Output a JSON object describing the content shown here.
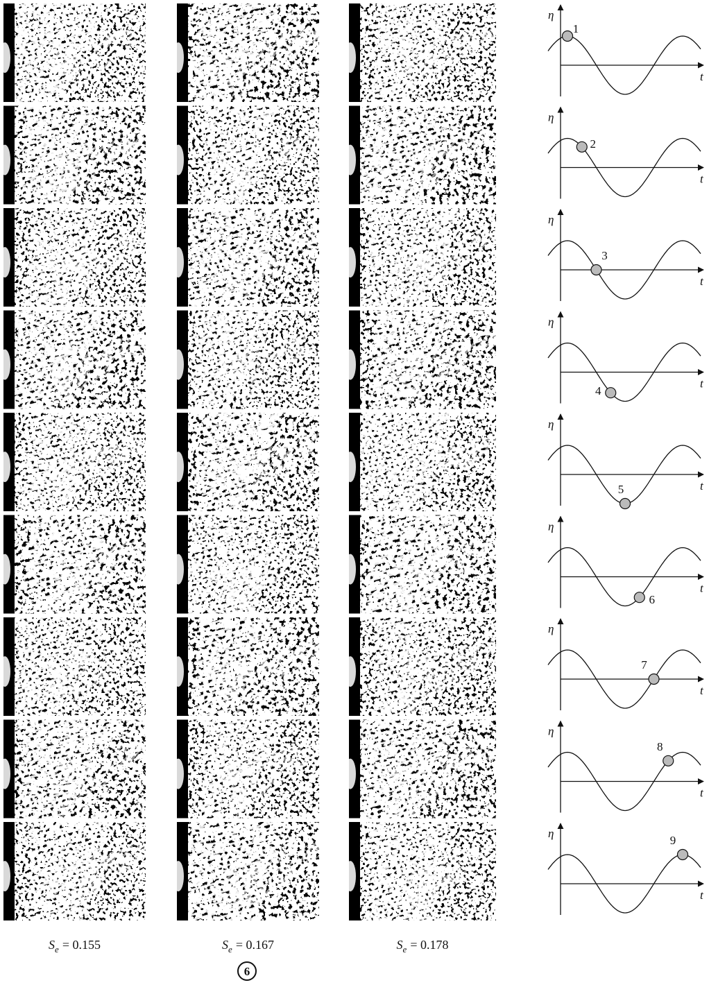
{
  "columns": [
    {
      "symbol": "S",
      "subscript": "e",
      "value": "= 0.155"
    },
    {
      "symbol": "S",
      "subscript": "e",
      "value": "= 0.167"
    },
    {
      "symbol": "S",
      "subscript": "e",
      "value": "= 0.178"
    }
  ],
  "diagrams": [
    {
      "y_label": "η",
      "x_label": "t",
      "point": "1"
    },
    {
      "y_label": "η",
      "x_label": "t",
      "point": "2"
    },
    {
      "y_label": "η",
      "x_label": "t",
      "point": "3"
    },
    {
      "y_label": "η",
      "x_label": "t",
      "point": "4"
    },
    {
      "y_label": "η",
      "x_label": "t",
      "point": "5"
    },
    {
      "y_label": "η",
      "x_label": "t",
      "point": "6"
    },
    {
      "y_label": "η",
      "x_label": "t",
      "point": "7"
    },
    {
      "y_label": "η",
      "x_label": "t",
      "point": "8"
    },
    {
      "y_label": "η",
      "x_label": "t",
      "point": "9"
    }
  ],
  "page_number": "6"
}
